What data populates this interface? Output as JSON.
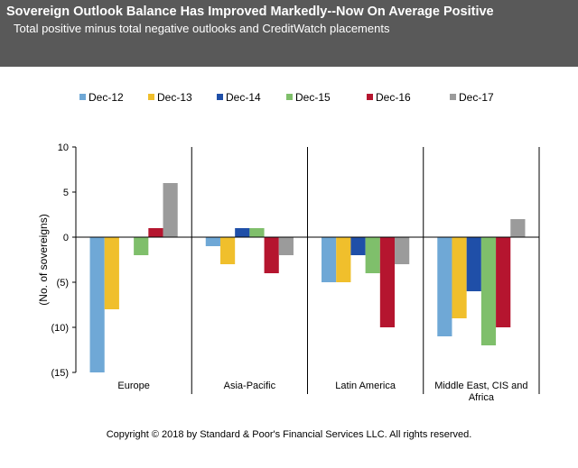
{
  "header": {
    "title": "Sovereign Outlook Balance Has Improved Markedly--Now On Average Positive",
    "subtitle": "Total positive minus total negative outlooks and CreditWatch placements"
  },
  "chart_data": {
    "type": "bar",
    "categories": [
      "Europe",
      "Asia-Pacific",
      "Latin America",
      "Middle East, CIS and Africa"
    ],
    "series": [
      {
        "name": "Dec-12",
        "color": "#6fa8d6",
        "values": [
          -15,
          -1,
          -5,
          -11
        ]
      },
      {
        "name": "Dec-13",
        "color": "#f0bf2c",
        "values": [
          -8,
          -3,
          -5,
          -9
        ]
      },
      {
        "name": "Dec-14",
        "color": "#1f4fa8",
        "values": [
          0,
          1,
          -2,
          -6
        ]
      },
      {
        "name": "Dec-15",
        "color": "#7fbf6b",
        "values": [
          -2,
          1,
          -4,
          -12
        ]
      },
      {
        "name": "Dec-16",
        "color": "#b5152f",
        "values": [
          1,
          -4,
          -10,
          -10
        ]
      },
      {
        "name": "Dec-17",
        "color": "#9b9b9b",
        "values": [
          6,
          -2,
          -3,
          2
        ]
      }
    ],
    "ylabel": "(No. of sovereigns)",
    "ylim": [
      -15,
      10
    ],
    "yticks": [
      10,
      5,
      0,
      -5,
      -10,
      -15
    ],
    "ytick_labels": [
      "10",
      "5",
      "0",
      "(5)",
      "(10)",
      "(15)"
    ],
    "legend_position": "top",
    "grid": false
  },
  "footer": {
    "copyright": "Copyright © 2018 by Standard & Poor's Financial Services LLC. All rights reserved."
  }
}
